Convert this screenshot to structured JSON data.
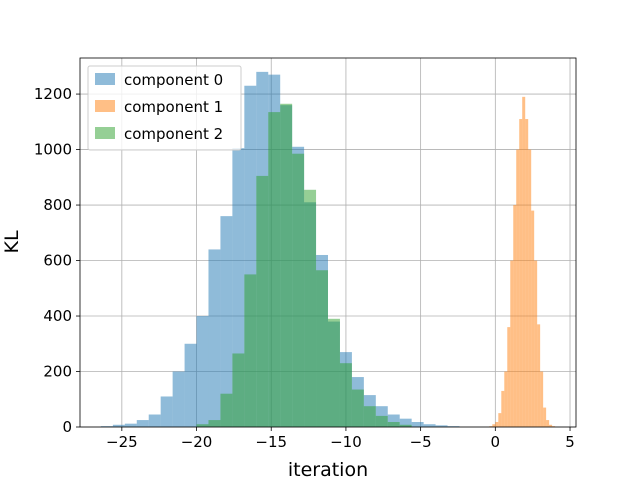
{
  "chart_data": {
    "type": "bar",
    "title": "",
    "xlabel": "iteration",
    "ylabel": "KL",
    "xlim": [
      -27.8,
      5.4
    ],
    "ylim": [
      0,
      1330
    ],
    "xticks": [
      -25,
      -20,
      -15,
      -10,
      -5,
      0,
      5
    ],
    "yticks": [
      0,
      200,
      400,
      600,
      800,
      1000,
      1200
    ],
    "grid": true,
    "legend": "top-left",
    "colors": {
      "component 0": "#1f77b4",
      "component 1": "#ff7f0e",
      "component 2": "#2ca02c"
    },
    "alpha": 0.5,
    "series": [
      {
        "name": "component 0",
        "bin_width": 0.8,
        "bins": [
          {
            "x": -26.4,
            "y": 3
          },
          {
            "x": -25.6,
            "y": 8
          },
          {
            "x": -24.8,
            "y": 12
          },
          {
            "x": -24.0,
            "y": 25
          },
          {
            "x": -23.2,
            "y": 45
          },
          {
            "x": -22.4,
            "y": 110
          },
          {
            "x": -21.6,
            "y": 200
          },
          {
            "x": -20.8,
            "y": 300
          },
          {
            "x": -20.0,
            "y": 400
          },
          {
            "x": -19.2,
            "y": 640
          },
          {
            "x": -18.4,
            "y": 760
          },
          {
            "x": -17.6,
            "y": 1005
          },
          {
            "x": -16.8,
            "y": 1230
          },
          {
            "x": -16.0,
            "y": 1280
          },
          {
            "x": -15.2,
            "y": 1270
          },
          {
            "x": -14.4,
            "y": 1160
          },
          {
            "x": -13.6,
            "y": 1010
          },
          {
            "x": -12.8,
            "y": 810
          },
          {
            "x": -12.0,
            "y": 620
          },
          {
            "x": -11.2,
            "y": 380
          },
          {
            "x": -10.4,
            "y": 270
          },
          {
            "x": -9.6,
            "y": 180
          },
          {
            "x": -8.8,
            "y": 115
          },
          {
            "x": -8.0,
            "y": 75
          },
          {
            "x": -7.2,
            "y": 45
          },
          {
            "x": -6.4,
            "y": 30
          },
          {
            "x": -5.6,
            "y": 18
          },
          {
            "x": -4.8,
            "y": 10
          },
          {
            "x": -4.0,
            "y": 6
          },
          {
            "x": -3.2,
            "y": 3
          }
        ]
      },
      {
        "name": "component 1",
        "bin_width": 0.2,
        "bins": [
          {
            "x": -0.4,
            "y": 3
          },
          {
            "x": -0.2,
            "y": 10
          },
          {
            "x": 0.0,
            "y": 18
          },
          {
            "x": 0.2,
            "y": 50
          },
          {
            "x": 0.4,
            "y": 130
          },
          {
            "x": 0.6,
            "y": 200
          },
          {
            "x": 0.8,
            "y": 360
          },
          {
            "x": 1.0,
            "y": 600
          },
          {
            "x": 1.2,
            "y": 800
          },
          {
            "x": 1.4,
            "y": 1000
          },
          {
            "x": 1.6,
            "y": 1110
          },
          {
            "x": 1.8,
            "y": 1190
          },
          {
            "x": 2.0,
            "y": 1110
          },
          {
            "x": 2.2,
            "y": 1000
          },
          {
            "x": 2.4,
            "y": 780
          },
          {
            "x": 2.6,
            "y": 600
          },
          {
            "x": 2.8,
            "y": 370
          },
          {
            "x": 3.0,
            "y": 200
          },
          {
            "x": 3.2,
            "y": 70
          },
          {
            "x": 3.4,
            "y": 25
          },
          {
            "x": 3.6,
            "y": 8
          },
          {
            "x": 3.8,
            "y": 3
          }
        ]
      },
      {
        "name": "component 2",
        "bin_width": 0.8,
        "bins": [
          {
            "x": -20.0,
            "y": 10
          },
          {
            "x": -19.2,
            "y": 25
          },
          {
            "x": -18.4,
            "y": 120
          },
          {
            "x": -17.6,
            "y": 265
          },
          {
            "x": -16.8,
            "y": 550
          },
          {
            "x": -16.0,
            "y": 905
          },
          {
            "x": -15.2,
            "y": 1135
          },
          {
            "x": -14.4,
            "y": 1165
          },
          {
            "x": -13.6,
            "y": 985
          },
          {
            "x": -12.8,
            "y": 855
          },
          {
            "x": -12.0,
            "y": 565
          },
          {
            "x": -11.2,
            "y": 390
          },
          {
            "x": -10.4,
            "y": 230
          },
          {
            "x": -9.6,
            "y": 135
          },
          {
            "x": -8.8,
            "y": 75
          },
          {
            "x": -8.0,
            "y": 40
          },
          {
            "x": -7.2,
            "y": 18
          },
          {
            "x": -6.4,
            "y": 8
          }
        ]
      }
    ]
  }
}
